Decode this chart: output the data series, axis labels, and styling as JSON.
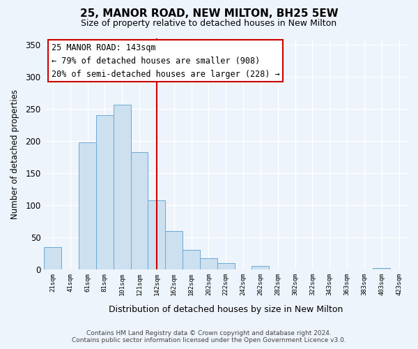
{
  "title": "25, MANOR ROAD, NEW MILTON, BH25 5EW",
  "subtitle": "Size of property relative to detached houses in New Milton",
  "xlabel": "Distribution of detached houses by size in New Milton",
  "ylabel": "Number of detached properties",
  "bar_color": "#cce0f0",
  "bar_edge_color": "#6aaad4",
  "vline_color": "#cc0000",
  "annotation_title": "25 MANOR ROAD: 143sqm",
  "annotation_line1": "← 79% of detached houses are smaller (908)",
  "annotation_line2": "20% of semi-detached houses are larger (228) →",
  "tick_labels": [
    "21sqm",
    "41sqm",
    "61sqm",
    "81sqm",
    "101sqm",
    "121sqm",
    "142sqm",
    "162sqm",
    "182sqm",
    "202sqm",
    "222sqm",
    "242sqm",
    "262sqm",
    "282sqm",
    "302sqm",
    "322sqm",
    "343sqm",
    "363sqm",
    "383sqm",
    "403sqm",
    "423sqm"
  ],
  "bar_heights": [
    35,
    0,
    198,
    240,
    257,
    183,
    108,
    60,
    30,
    17,
    10,
    0,
    5,
    0,
    0,
    0,
    0,
    0,
    0,
    2,
    0
  ],
  "ylim": [
    0,
    360
  ],
  "yticks": [
    0,
    50,
    100,
    150,
    200,
    250,
    300,
    350
  ],
  "footer_line1": "Contains HM Land Registry data © Crown copyright and database right 2024.",
  "footer_line2": "Contains public sector information licensed under the Open Government Licence v3.0.",
  "bg_color": "#eef4fb"
}
